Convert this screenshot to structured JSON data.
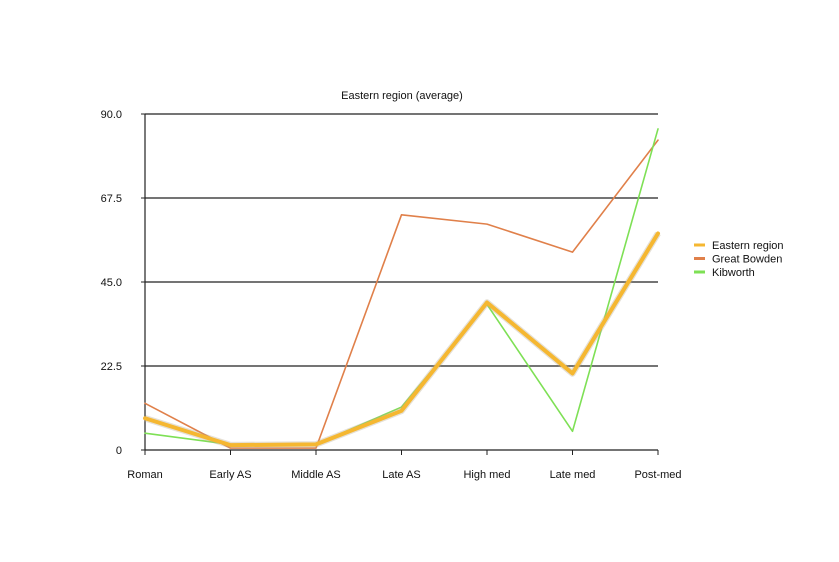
{
  "chart_data": {
    "type": "line",
    "title": "Eastern region  (average)",
    "xlabel": "",
    "ylabel": "",
    "categories": [
      "Roman",
      "Early AS",
      "Middle AS",
      "Late AS",
      "High med",
      "Late med",
      "Post-med"
    ],
    "ylim": [
      0,
      90
    ],
    "yticks": [
      0,
      22.5,
      45,
      67.5,
      90
    ],
    "ytick_labels": [
      "0",
      "22.5",
      "45.0",
      "67.5",
      "90.0"
    ],
    "grid": true,
    "legend_position": "right",
    "series": [
      {
        "name": "Eastern region",
        "color": "#f5b731",
        "values": [
          8.5,
          1.3,
          1.5,
          10.5,
          39.5,
          20.5,
          58.0
        ]
      },
      {
        "name": "Great Bowden",
        "color": "#e0804a",
        "values": [
          12.5,
          0.5,
          0.5,
          63.0,
          60.5,
          53.0,
          83.0
        ]
      },
      {
        "name": "Kibworth",
        "color": "#7ee055",
        "values": [
          4.5,
          1.5,
          1.5,
          11.5,
          39.0,
          5.0,
          86.0
        ]
      }
    ]
  }
}
